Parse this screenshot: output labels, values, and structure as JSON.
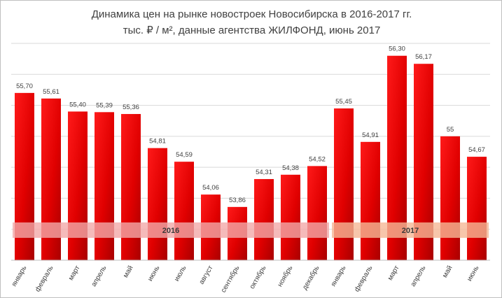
{
  "chart_data": {
    "type": "bar",
    "title": "Динамика цен на рынке новостроек Новосибирска в 2016-2017 гг.",
    "subtitle": "тыс. ₽ / м², данные агентства ЖИЛФОНД, июнь 2017",
    "categories": [
      "январь",
      "февраль",
      "март",
      "апрель",
      "май",
      "июнь",
      "июль",
      "август",
      "сентябрь",
      "октябрь",
      "ноябрь",
      "декабрь",
      "январь",
      "февраль",
      "март",
      "апрель",
      "май",
      "июнь"
    ],
    "values": [
      55.7,
      55.61,
      55.4,
      55.39,
      55.36,
      54.81,
      54.59,
      54.06,
      53.86,
      54.31,
      54.38,
      54.52,
      55.45,
      54.91,
      56.3,
      56.17,
      55.0,
      54.67
    ],
    "value_labels": [
      "55,70",
      "55,61",
      "55,40",
      "55,39",
      "55,36",
      "54,81",
      "54,59",
      "54,06",
      "53,86",
      "54,31",
      "54,38",
      "54,52",
      "55,45",
      "54,91",
      "56,30",
      "56,17",
      "55",
      "54,67"
    ],
    "groups": [
      {
        "label": "2016",
        "start": 0,
        "end": 11,
        "color": "#f2a9a9"
      },
      {
        "label": "2017",
        "start": 12,
        "end": 17,
        "color": "#f5b896"
      }
    ],
    "ylim": [
      53,
      56.5
    ],
    "grid": true,
    "legend": "none",
    "colors": {
      "bar_light": "#ff1a1a",
      "bar_dark": "#a90000"
    }
  }
}
